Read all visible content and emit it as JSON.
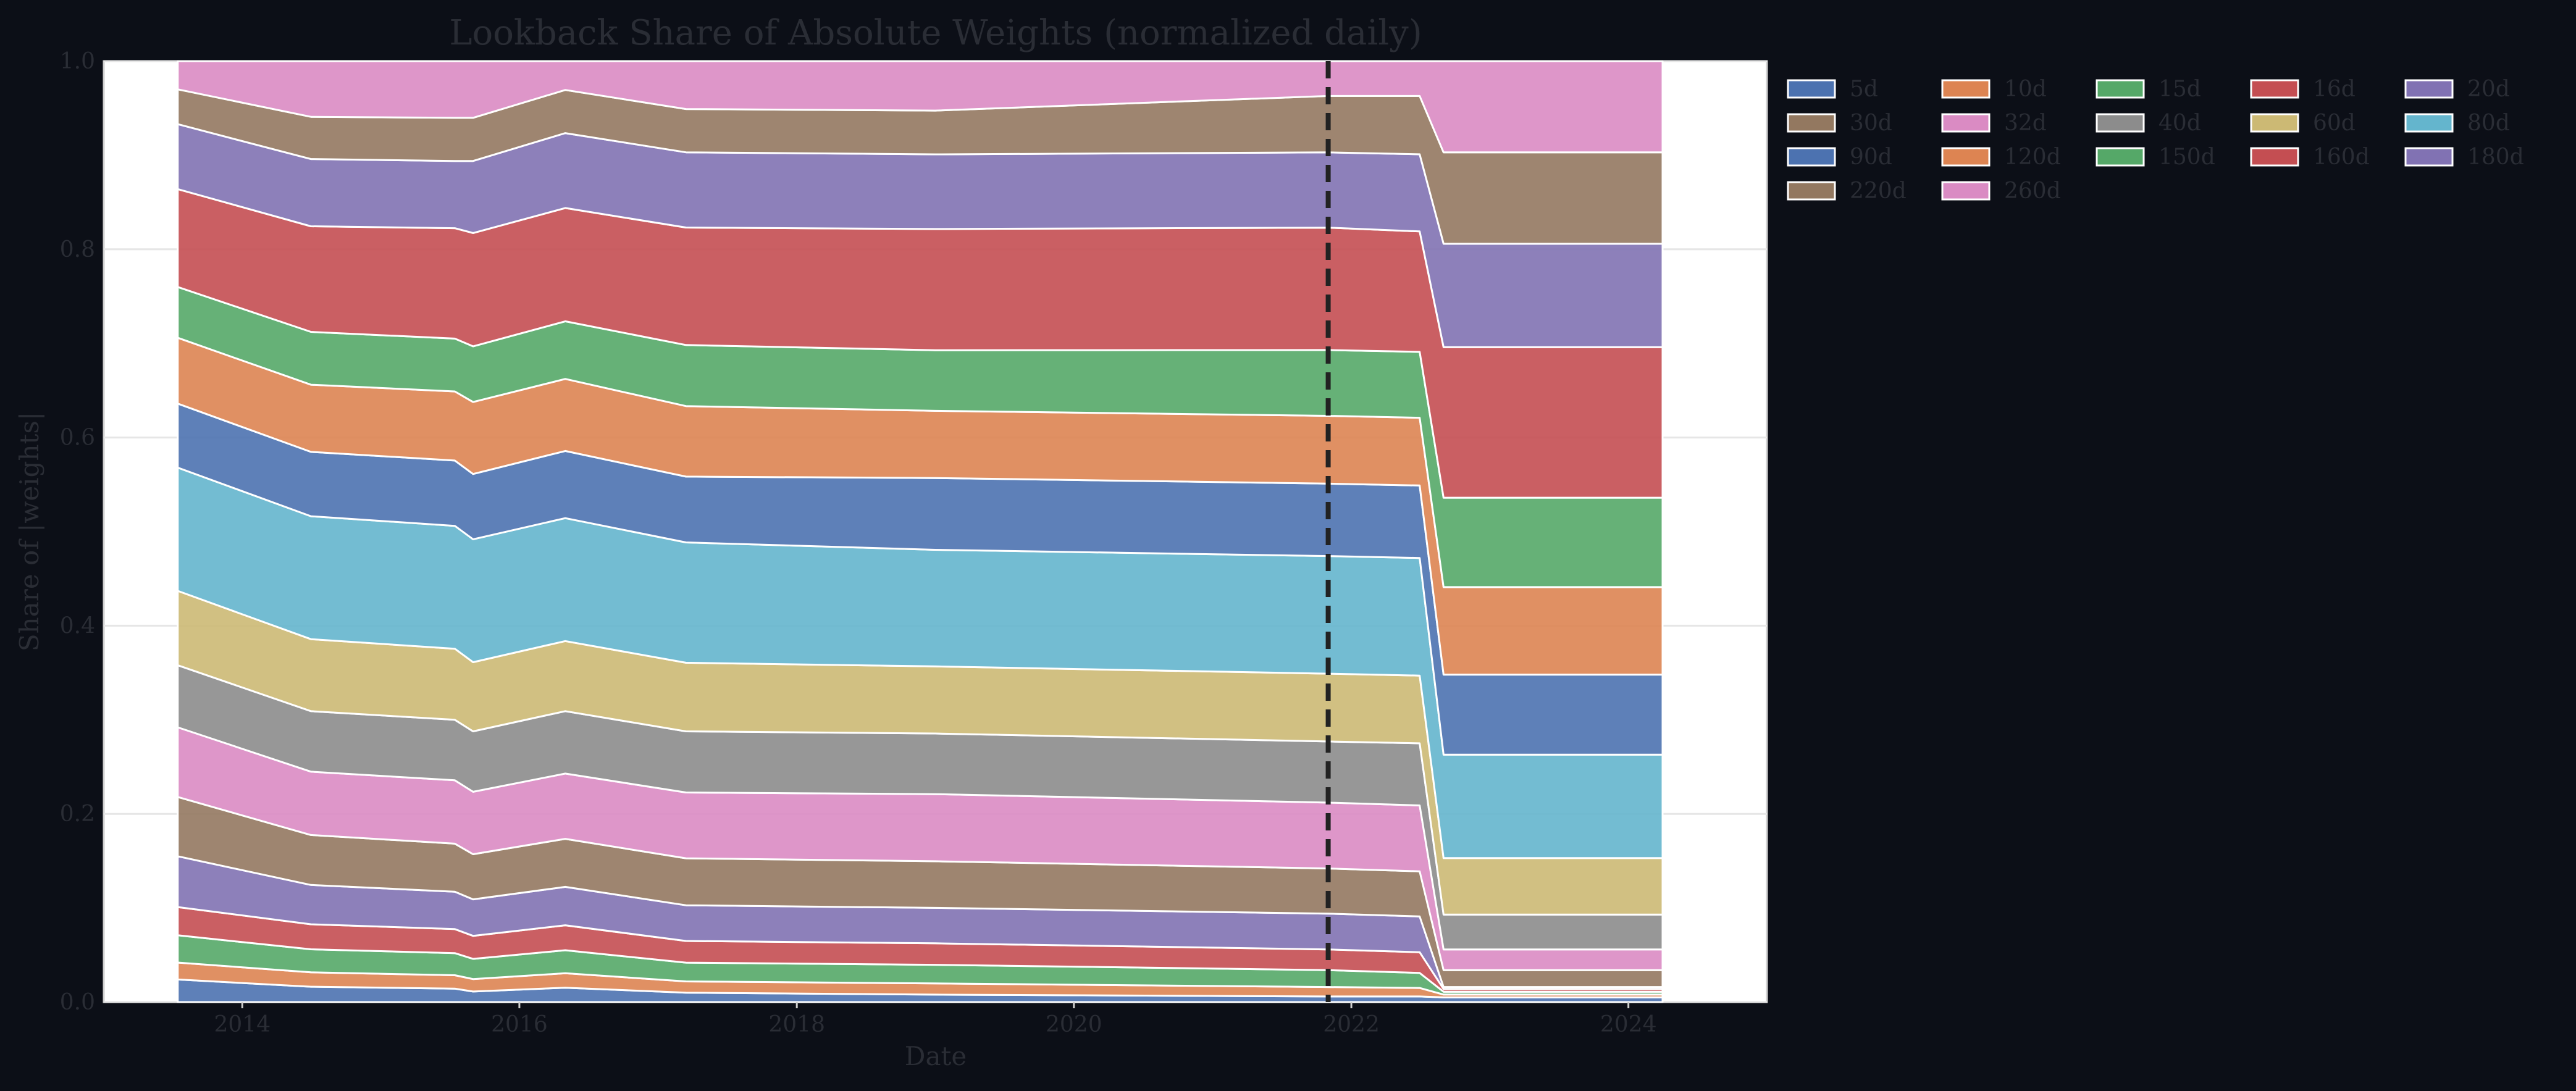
{
  "chart_data": {
    "type": "area",
    "stacked": true,
    "normalized": true,
    "title": "Lookback Share of Absolute Weights (normalized daily)",
    "xlabel": "Date",
    "ylabel": "Share of |weights|",
    "xlim": [
      "2013-01-01",
      "2024-12-31"
    ],
    "ylim": [
      0,
      1
    ],
    "x_ticks": [
      "2014",
      "2016",
      "2018",
      "2020",
      "2022",
      "2024"
    ],
    "y_ticks": [
      "0.0",
      "0.2",
      "0.4",
      "0.6",
      "0.8",
      "1.0"
    ],
    "grid": true,
    "legend_position": "outside-right",
    "annotations": [
      {
        "type": "vline",
        "x": "2021-11-01",
        "style": "dashed"
      }
    ],
    "x": [
      "2013-07-15",
      "2014-07-01",
      "2015-07-15",
      "2015-09-01",
      "2016-05-01",
      "2017-03-15",
      "2019-01-01",
      "2021-11-01",
      "2022-06-30",
      "2022-09-01",
      "2024-03-31"
    ],
    "series": [
      {
        "name": "5d",
        "color": "#4c72b0",
        "values": [
          0.024,
          0.016,
          0.014,
          0.011,
          0.015,
          0.01,
          0.008,
          0.006,
          0.006,
          0.005,
          0.005
        ]
      },
      {
        "name": "10d",
        "color": "#dd8452",
        "values": [
          0.018,
          0.015,
          0.014,
          0.013,
          0.015,
          0.012,
          0.012,
          0.01,
          0.009,
          0.003,
          0.003
        ]
      },
      {
        "name": "15d",
        "color": "#55a868",
        "values": [
          0.029,
          0.024,
          0.023,
          0.021,
          0.024,
          0.02,
          0.02,
          0.018,
          0.016,
          0.003,
          0.003
        ]
      },
      {
        "name": "16d",
        "color": "#c44e52",
        "values": [
          0.03,
          0.026,
          0.025,
          0.024,
          0.026,
          0.023,
          0.023,
          0.022,
          0.022,
          0.003,
          0.003
        ]
      },
      {
        "name": "20d",
        "color": "#8172b3",
        "values": [
          0.054,
          0.041,
          0.039,
          0.038,
          0.04,
          0.038,
          0.038,
          0.038,
          0.038,
          0.002,
          0.002
        ]
      },
      {
        "name": "30d",
        "color": "#937860",
        "values": [
          0.063,
          0.052,
          0.05,
          0.047,
          0.05,
          0.05,
          0.05,
          0.048,
          0.048,
          0.018,
          0.018
        ]
      },
      {
        "name": "32d",
        "color": "#da8bc3",
        "values": [
          0.074,
          0.066,
          0.066,
          0.065,
          0.068,
          0.07,
          0.072,
          0.07,
          0.07,
          0.022,
          0.022
        ]
      },
      {
        "name": "40d",
        "color": "#8c8c8c",
        "values": [
          0.066,
          0.063,
          0.063,
          0.063,
          0.065,
          0.065,
          0.065,
          0.065,
          0.066,
          0.037,
          0.037
        ]
      },
      {
        "name": "60d",
        "color": "#ccb974",
        "values": [
          0.079,
          0.075,
          0.074,
          0.072,
          0.073,
          0.073,
          0.072,
          0.072,
          0.072,
          0.06,
          0.06
        ]
      },
      {
        "name": "80d",
        "color": "#64b5cd",
        "values": [
          0.131,
          0.128,
          0.128,
          0.128,
          0.128,
          0.128,
          0.125,
          0.125,
          0.125,
          0.11,
          0.11
        ]
      },
      {
        "name": "90d",
        "color": "#4c72b0",
        "values": [
          0.068,
          0.067,
          0.068,
          0.068,
          0.07,
          0.07,
          0.077,
          0.077,
          0.077,
          0.085,
          0.085
        ]
      },
      {
        "name": "120d",
        "color": "#dd8452",
        "values": [
          0.07,
          0.07,
          0.072,
          0.075,
          0.075,
          0.075,
          0.072,
          0.072,
          0.072,
          0.093,
          0.093
        ]
      },
      {
        "name": "150d",
        "color": "#55a868",
        "values": [
          0.054,
          0.055,
          0.055,
          0.058,
          0.06,
          0.065,
          0.065,
          0.07,
          0.07,
          0.095,
          0.095
        ]
      },
      {
        "name": "160d",
        "color": "#c44e52",
        "values": [
          0.104,
          0.11,
          0.115,
          0.118,
          0.118,
          0.125,
          0.13,
          0.13,
          0.128,
          0.16,
          0.16
        ]
      },
      {
        "name": "180d",
        "color": "#8172b3",
        "values": [
          0.069,
          0.07,
          0.07,
          0.075,
          0.078,
          0.08,
          0.08,
          0.08,
          0.082,
          0.11,
          0.11
        ]
      },
      {
        "name": "220d",
        "color": "#937860",
        "values": [
          0.037,
          0.044,
          0.045,
          0.045,
          0.045,
          0.046,
          0.047,
          0.06,
          0.062,
          0.097,
          0.097
        ]
      },
      {
        "name": "260d",
        "color": "#da8bc3",
        "values": [
          0.03,
          0.058,
          0.059,
          0.059,
          0.03,
          0.051,
          0.053,
          0.037,
          0.037,
          0.097,
          0.097
        ]
      }
    ]
  }
}
